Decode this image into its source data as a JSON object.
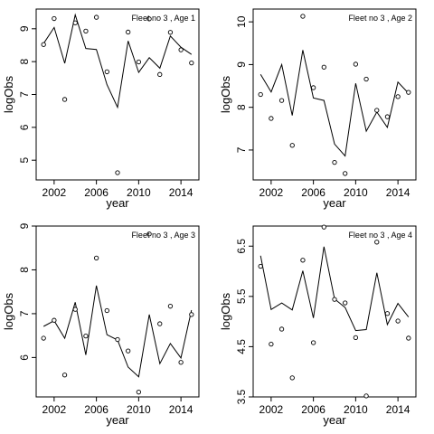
{
  "chart_data": [
    {
      "type": "scatter",
      "title": "Fleet no 3 , Age 1",
      "xlabel": "year",
      "ylabel": "logObs",
      "xlim": [
        2000.3,
        2015.7
      ],
      "ylim": [
        4.4,
        9.6
      ],
      "xticks": [
        2002,
        2006,
        2010,
        2014
      ],
      "yticks": [
        5,
        6,
        7,
        8,
        9
      ],
      "x": [
        2001,
        2002,
        2003,
        2004,
        2005,
        2006,
        2007,
        2008,
        2009,
        2010,
        2011,
        2012,
        2013,
        2014,
        2015
      ],
      "series": [
        {
          "style": "points",
          "values": [
            8.52,
            9.31,
            6.85,
            9.18,
            8.93,
            9.35,
            7.69,
            4.62,
            8.9,
            7.99,
            9.3,
            7.61,
            8.89,
            8.36,
            7.96
          ]
        },
        {
          "style": "line",
          "values": [
            8.55,
            9.04,
            7.95,
            9.42,
            8.4,
            8.37,
            7.3,
            6.61,
            8.63,
            7.67,
            8.12,
            7.8,
            8.78,
            8.44,
            8.22
          ]
        }
      ]
    },
    {
      "type": "scatter",
      "title": "Fleet no 3 , Age 2",
      "xlabel": "year",
      "ylabel": "logObs",
      "xlim": [
        2000.3,
        2015.7
      ],
      "ylim": [
        6.3,
        10.3
      ],
      "xticks": [
        2002,
        2006,
        2010,
        2014
      ],
      "yticks": [
        7,
        8,
        9,
        10
      ],
      "x": [
        2001,
        2002,
        2003,
        2004,
        2005,
        2006,
        2007,
        2008,
        2009,
        2010,
        2011,
        2012,
        2013,
        2014,
        2015
      ],
      "series": [
        {
          "style": "points",
          "values": [
            8.3,
            7.74,
            8.16,
            7.11,
            10.13,
            8.46,
            8.94,
            6.71,
            6.45,
            9.01,
            8.66,
            7.93,
            7.78,
            8.25,
            8.35
          ]
        },
        {
          "style": "line",
          "values": [
            8.77,
            8.36,
            9.0,
            7.81,
            9.34,
            8.22,
            8.16,
            7.14,
            6.86,
            8.56,
            7.44,
            7.89,
            7.53,
            8.59,
            8.33
          ]
        }
      ]
    },
    {
      "type": "scatter",
      "title": "Fleet no 3 , Age 3",
      "xlabel": "year",
      "ylabel": "logObs",
      "xlim": [
        2000.3,
        2015.7
      ],
      "ylim": [
        5.1,
        9.0
      ],
      "xticks": [
        2002,
        2006,
        2010,
        2014
      ],
      "yticks": [
        6,
        7,
        8,
        9
      ],
      "x": [
        2001,
        2002,
        2003,
        2004,
        2005,
        2006,
        2007,
        2008,
        2009,
        2010,
        2011,
        2012,
        2013,
        2014,
        2015
      ],
      "series": [
        {
          "style": "points",
          "values": [
            6.44,
            6.85,
            5.6,
            7.1,
            6.49,
            8.27,
            7.07,
            6.41,
            6.15,
            5.21,
            8.82,
            6.77,
            7.17,
            5.89,
            6.98
          ]
        },
        {
          "style": "line",
          "values": [
            6.71,
            6.84,
            6.44,
            7.26,
            6.06,
            7.64,
            6.52,
            6.4,
            5.78,
            5.56,
            6.98,
            5.86,
            6.32,
            5.99,
            7.08
          ]
        }
      ]
    },
    {
      "type": "scatter",
      "title": "Fleet no 3 , Age 4",
      "xlabel": "year",
      "ylabel": "logObs",
      "xlim": [
        2000.3,
        2015.7
      ],
      "ylim": [
        3.5,
        6.9
      ],
      "xticks": [
        2002,
        2006,
        2010,
        2014
      ],
      "yticks": [
        3.5,
        4.5,
        5.5,
        6.5
      ],
      "xtick_labels": [
        "2002",
        "2006",
        "2010",
        "2014"
      ],
      "ytick_labels": [
        "3.5",
        "4.5",
        "5.5",
        "6.5"
      ],
      "x": [
        2001,
        2002,
        2003,
        2004,
        2005,
        2006,
        2007,
        2008,
        2009,
        2010,
        2011,
        2012,
        2013,
        2014,
        2015
      ],
      "series": [
        {
          "style": "points",
          "values": [
            6.1,
            4.55,
            4.85,
            3.88,
            6.22,
            4.58,
            6.88,
            5.44,
            5.37,
            4.68,
            3.52,
            6.58,
            5.16,
            5.01,
            4.67
          ]
        },
        {
          "style": "line",
          "values": [
            6.31,
            5.24,
            5.37,
            5.23,
            6.01,
            5.07,
            6.49,
            5.45,
            5.28,
            4.82,
            4.84,
            5.97,
            4.94,
            5.36,
            5.09
          ]
        }
      ]
    }
  ]
}
